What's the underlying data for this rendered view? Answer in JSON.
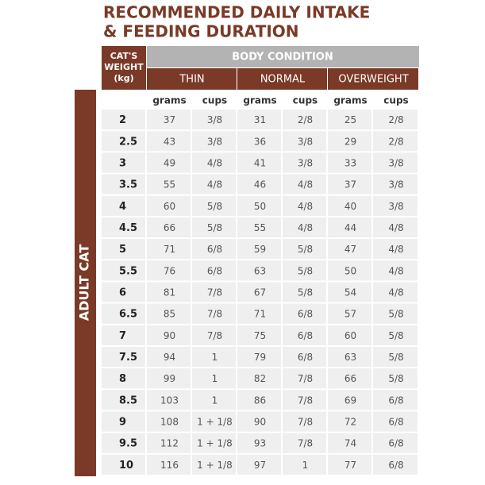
{
  "title_lines": [
    "RECOMMENDED DAILY INTAKE",
    "& FEEDING DURATION"
  ],
  "side_label": "ADULT CAT",
  "table": {
    "weight_header": [
      "CAT'S",
      "WEIGHT",
      "(kg)"
    ],
    "group_header": "BODY CONDITION",
    "groups": [
      "THIN",
      "NORMAL",
      "OVERWEIGHT"
    ],
    "subheaders": [
      "grams",
      "cups",
      "grams",
      "cups",
      "grams",
      "cups"
    ],
    "rows": [
      [
        2,
        37,
        "3/8",
        31,
        "2/8",
        25,
        "2/8"
      ],
      [
        2.5,
        43,
        "3/8",
        36,
        "3/8",
        29,
        "2/8"
      ],
      [
        3,
        49,
        "4/8",
        41,
        "3/8",
        33,
        "3/8"
      ],
      [
        3.5,
        55,
        "4/8",
        46,
        "4/8",
        37,
        "3/8"
      ],
      [
        4,
        60,
        "5/8",
        50,
        "4/8",
        40,
        "3/8"
      ],
      [
        4.5,
        66,
        "5/8",
        55,
        "4/8",
        44,
        "4/8"
      ],
      [
        5,
        71,
        "6/8",
        59,
        "5/8",
        47,
        "4/8"
      ],
      [
        5.5,
        76,
        "6/8",
        63,
        "5/8",
        50,
        "4/8"
      ],
      [
        6,
        81,
        "7/8",
        67,
        "5/8",
        54,
        "4/8"
      ],
      [
        6.5,
        85,
        "7/8",
        71,
        "6/8",
        57,
        "5/8"
      ],
      [
        7,
        90,
        "7/8",
        75,
        "6/8",
        60,
        "5/8"
      ],
      [
        7.5,
        94,
        1,
        79,
        "6/8",
        63,
        "5/8"
      ],
      [
        8,
        99,
        1,
        82,
        "7/8",
        66,
        "5/8"
      ],
      [
        8.5,
        103,
        1,
        86,
        "7/8",
        69,
        "6/8"
      ],
      [
        9,
        108,
        "1 + 1/8",
        90,
        "7/8",
        72,
        "6/8"
      ],
      [
        9.5,
        112,
        "1 + 1/8",
        93,
        "7/8",
        74,
        "6/8"
      ],
      [
        10,
        116,
        "1 + 1/8",
        97,
        1,
        77,
        "6/8"
      ]
    ]
  }
}
